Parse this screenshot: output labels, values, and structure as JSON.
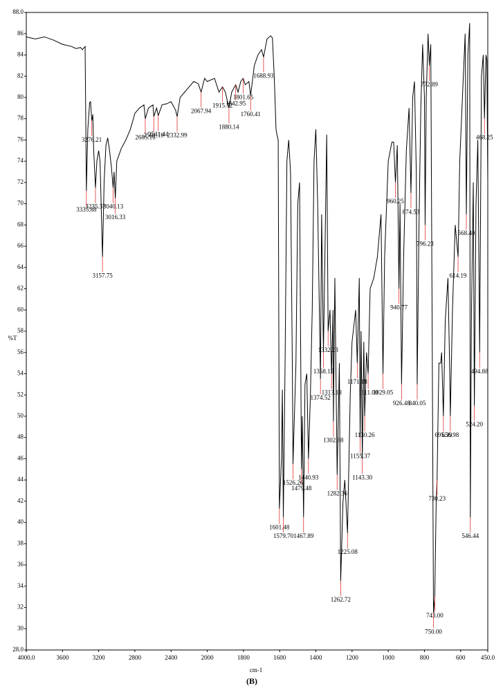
{
  "chart_data": {
    "type": "line",
    "caption": "(B)",
    "x_label": "cm-1",
    "y_label": "%T",
    "color": "#000000",
    "annotation_color": "#e03030",
    "x_scale_break": 2000,
    "xlim": [
      4000,
      450
    ],
    "ylim": [
      28,
      88
    ],
    "xticks": [
      {
        "value": 4000,
        "label": "4000.0"
      },
      3600,
      3200,
      2800,
      2400,
      2000,
      1800,
      1600,
      1400,
      1200,
      1000,
      800,
      600,
      {
        "value": 450,
        "label": "450.0"
      }
    ],
    "yticks": [
      {
        "value": 28,
        "label": "28.0"
      },
      30,
      32,
      34,
      36,
      38,
      40,
      42,
      44,
      46,
      48,
      50,
      52,
      54,
      56,
      58,
      60,
      62,
      64,
      66,
      68,
      70,
      72,
      74,
      76,
      78,
      80,
      82,
      84,
      86,
      {
        "value": 88,
        "label": "88.0"
      }
    ],
    "x": [
      4000,
      3900,
      3800,
      3700,
      3600,
      3500,
      3450,
      3400,
      3380,
      3350,
      3335.88,
      3320,
      3300,
      3290,
      3276.21,
      3265,
      3255,
      3235.37,
      3220,
      3200,
      3185,
      3157.75,
      3140,
      3120,
      3100,
      3080,
      3060,
      3040.13,
      3030,
      3016.33,
      3000,
      2950,
      2900,
      2850,
      2800,
      2750,
      2700,
      2685.16,
      2650,
      2600,
      2591.19,
      2560,
      2541.44,
      2500,
      2450,
      2400,
      2350,
      2332.99,
      2300,
      2250,
      2200,
      2150,
      2100,
      2067.94,
      2030,
      2000,
      1960,
      1935,
      1915.72,
      1900,
      1880.14,
      1865,
      1842.95,
      1830,
      1815,
      1801.65,
      1790,
      1770,
      1760.41,
      1740,
      1720,
      1700,
      1688.93,
      1670,
      1650,
      1640,
      1630,
      1620,
      1615,
      1608,
      1601.48,
      1590,
      1585,
      1579.7,
      1570,
      1560,
      1550,
      1540,
      1530,
      1526.26,
      1510,
      1500,
      1490,
      1479.48,
      1475,
      1467.89,
      1460,
      1450,
      1440.93,
      1430,
      1420,
      1410,
      1400,
      1390,
      1374.52,
      1368,
      1358.15,
      1350,
      1340,
      1332.23,
      1322,
      1313.18,
      1305,
      1302.88,
      1295,
      1282.36,
      1270,
      1262.72,
      1250,
      1240,
      1225.08,
      1210,
      1200,
      1180,
      1171.18,
      1160,
      1155.37,
      1150,
      1143.3,
      1135,
      1130.26,
      1120,
      1111,
      1100,
      1080,
      1060,
      1040,
      1029.05,
      1020,
      1000,
      980,
      970,
      960.25,
      950,
      940.77,
      935,
      926.48,
      915,
      900,
      885,
      874.53,
      865,
      855,
      845,
      840.05,
      830,
      820,
      810,
      800,
      796.23,
      790,
      780,
      772.89,
      765,
      755,
      750,
      743,
      735,
      730.23,
      720,
      710,
      705,
      695.39,
      685,
      670,
      660,
      656.98,
      645,
      630,
      614.19,
      605,
      590,
      575,
      568.4,
      560,
      550,
      546.44,
      540,
      530,
      524.2,
      515,
      505,
      494.88,
      485,
      475,
      468.25,
      460,
      455,
      450
    ],
    "values": [
      85.7,
      85.5,
      85.7,
      85.4,
      85.0,
      84.8,
      84.6,
      84.7,
      84.5,
      84.8,
      71.2,
      77,
      79.5,
      79.6,
      77.8,
      78.4,
      75,
      71.5,
      74,
      75,
      74,
      65,
      72,
      75.5,
      76.2,
      75,
      73.5,
      71.5,
      73,
      70.5,
      74,
      75.2,
      76,
      77,
      78.5,
      79,
      79.3,
      78,
      79,
      79.3,
      78.2,
      79,
      78.3,
      79.3,
      79.4,
      79.6,
      78.8,
      78.2,
      80,
      80.5,
      81,
      81.5,
      81.3,
      80.5,
      81.8,
      81.5,
      81.8,
      80.5,
      81,
      80.5,
      79,
      80.5,
      81.2,
      80.5,
      81.5,
      81.8,
      81.2,
      81.5,
      80.2,
      83,
      84,
      84.5,
      83.8,
      85.5,
      85.8,
      85.6,
      82,
      77,
      76.5,
      76,
      41.3,
      46,
      52.5,
      40.5,
      55,
      74,
      76,
      73,
      55,
      45.5,
      55,
      70,
      72,
      45,
      50,
      40.5,
      53,
      54,
      46,
      52,
      60,
      74,
      77,
      70,
      53.5,
      69,
      56,
      65,
      76.5,
      58,
      60,
      54,
      60,
      49.5,
      63,
      44.5,
      55,
      34.5,
      42,
      44,
      39,
      52,
      57,
      60,
      55,
      63,
      48,
      58,
      46,
      57,
      50,
      56,
      54,
      62,
      63,
      65,
      69,
      54,
      65,
      74,
      75.8,
      75.8,
      72,
      75.5,
      62,
      70,
      53,
      65,
      75,
      79,
      71,
      80,
      81.5,
      73,
      53,
      68,
      79,
      85,
      80,
      68,
      80,
      86,
      83,
      85,
      50,
      31.5,
      33,
      42,
      44,
      55,
      55,
      56,
      50,
      59,
      63,
      54,
      50,
      60,
      68,
      65,
      74,
      80,
      86,
      69,
      84,
      87,
      40.5,
      60,
      72,
      51,
      70,
      76,
      56,
      82,
      84,
      78,
      84,
      83.5,
      72
    ],
    "annotations": [
      {
        "label": "3335.88",
        "x": 3335.88
      },
      {
        "label": "3276.21",
        "x": 3276.21
      },
      {
        "label": "3235.37",
        "x": 3235.37
      },
      {
        "label": "3157.75",
        "x": 3157.75
      },
      {
        "label": "3040.13",
        "x": 3040.13
      },
      {
        "label": "3016.33",
        "x": 3016.33
      },
      {
        "label": "2685.16",
        "x": 2685.16
      },
      {
        "label": "2591.19",
        "x": 2591.19
      },
      {
        "label": "2541.44",
        "x": 2541.44
      },
      {
        "label": "2332.99",
        "x": 2332.99
      },
      {
        "label": "2067.94",
        "x": 2067.94
      },
      {
        "label": "1915.72",
        "x": 1915.72
      },
      {
        "label": "1880.14",
        "x": 1880.14
      },
      {
        "label": "1842.95",
        "x": 1842.95
      },
      {
        "label": "1801.65",
        "x": 1801.65
      },
      {
        "label": "1760.41",
        "x": 1760.41
      },
      {
        "label": "1688.93",
        "x": 1688.93
      },
      {
        "label": "1601.48",
        "x": 1601.48
      },
      {
        "label": "1579.70",
        "x": 1579.7
      },
      {
        "label": "1526.26",
        "x": 1526.26
      },
      {
        "label": "1479.48",
        "x": 1479.48
      },
      {
        "label": "1467.89",
        "x": 1467.89
      },
      {
        "label": "1440.93",
        "x": 1440.93
      },
      {
        "label": "1374.52",
        "x": 1374.52
      },
      {
        "label": "1358.15",
        "x": 1358.15
      },
      {
        "label": "1332.23",
        "x": 1332.23
      },
      {
        "label": "1313.18",
        "x": 1313.18
      },
      {
        "label": "1302.88",
        "x": 1302.88
      },
      {
        "label": "1282.36",
        "x": 1282.36
      },
      {
        "label": "1262.72",
        "x": 1262.72
      },
      {
        "label": "1225.08",
        "x": 1225.08
      },
      {
        "label": "1171.18",
        "x": 1171.18
      },
      {
        "label": "1155.37",
        "x": 1155.37
      },
      {
        "label": "1143.30",
        "x": 1143.3
      },
      {
        "label": "1130.26",
        "x": 1130.26
      },
      {
        "label": "1111.00",
        "x": 1111
      },
      {
        "label": "1029.05",
        "x": 1029.05
      },
      {
        "label": "960.25",
        "x": 960.25
      },
      {
        "label": "940.77",
        "x": 940.77
      },
      {
        "label": "926.48",
        "x": 926.48
      },
      {
        "label": "874.53",
        "x": 874.53
      },
      {
        "label": "840.05",
        "x": 840.05
      },
      {
        "label": "796.23",
        "x": 796.23
      },
      {
        "label": "772.89",
        "x": 772.89
      },
      {
        "label": "750.00",
        "x": 750
      },
      {
        "label": "743.00",
        "x": 743
      },
      {
        "label": "730.23",
        "x": 730.23
      },
      {
        "label": "695.39",
        "x": 695.39
      },
      {
        "label": "656.98",
        "x": 656.98
      },
      {
        "label": "614.19",
        "x": 614.19
      },
      {
        "label": "568.40",
        "x": 568.4
      },
      {
        "label": "546.44",
        "x": 546.44
      },
      {
        "label": "524.20",
        "x": 524.2
      },
      {
        "label": "494.88",
        "x": 494.88
      },
      {
        "label": "468.25",
        "x": 468.25
      }
    ]
  }
}
